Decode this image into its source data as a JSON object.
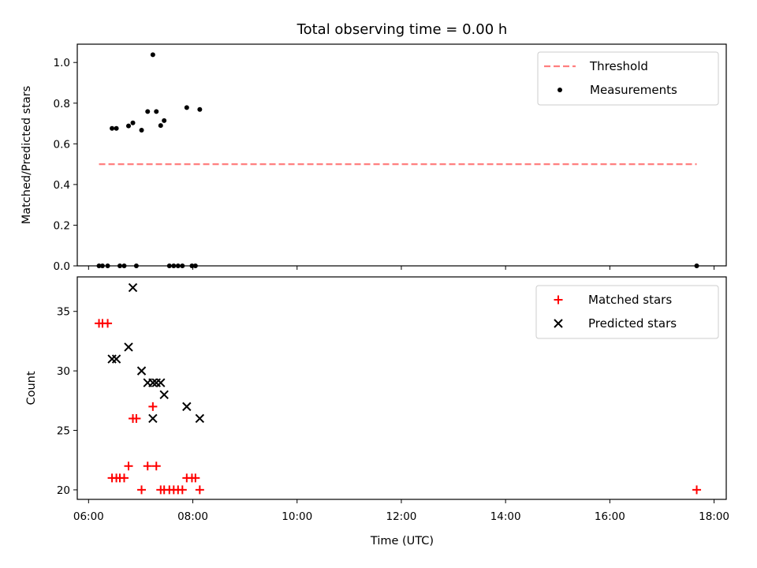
{
  "title": "Total observing time = 0.00 h",
  "xlabel": "Time (UTC)",
  "x_ticks": [
    "06:00",
    "08:00",
    "10:00",
    "12:00",
    "14:00",
    "16:00",
    "18:00"
  ],
  "chart_data": [
    {
      "type": "scatter",
      "ylabel": "Matched/Predicted stars",
      "xlim": [
        "05:47",
        "18:14"
      ],
      "ylim": [
        0,
        1.09
      ],
      "y_ticks": [
        "0.0",
        "0.2",
        "0.4",
        "0.6",
        "0.8",
        "1.0"
      ],
      "legend_position": "upper-right",
      "series": [
        {
          "name": "Threshold",
          "style": "dashed-line",
          "color": "#ff7f7f",
          "x": [
            "06:12",
            "17:40"
          ],
          "y": [
            0.5,
            0.5
          ]
        },
        {
          "name": "Measurements",
          "style": "dot",
          "color": "#000000",
          "points": [
            [
              "06:12",
              0.0
            ],
            [
              "06:16",
              0.0
            ],
            [
              "06:22",
              0.0
            ],
            [
              "06:27",
              0.676
            ],
            [
              "06:32",
              0.676
            ],
            [
              "06:36",
              0.0
            ],
            [
              "06:41",
              0.0
            ],
            [
              "06:46",
              0.688
            ],
            [
              "06:51",
              0.703
            ],
            [
              "06:55",
              0.0
            ],
            [
              "07:01",
              0.667
            ],
            [
              "07:08",
              0.759
            ],
            [
              "07:14",
              1.038
            ],
            [
              "07:18",
              0.759
            ],
            [
              "07:23",
              0.69
            ],
            [
              "07:27",
              0.714
            ],
            [
              "07:33",
              0.0
            ],
            [
              "07:38",
              0.0
            ],
            [
              "07:43",
              0.0
            ],
            [
              "07:48",
              0.0
            ],
            [
              "07:53",
              0.778
            ],
            [
              "07:59",
              0.0
            ],
            [
              "08:03",
              0.0
            ],
            [
              "08:08",
              0.769
            ],
            [
              "17:40",
              0.0
            ]
          ]
        }
      ]
    },
    {
      "type": "scatter",
      "ylabel": "Count",
      "xlim": [
        "05:47",
        "18:14"
      ],
      "ylim": [
        19.2,
        37.9
      ],
      "y_ticks": [
        "20",
        "25",
        "30",
        "35"
      ],
      "legend_position": "upper-right",
      "series": [
        {
          "name": "Matched stars",
          "style": "plus",
          "color": "#ff0000",
          "points": [
            [
              "06:12",
              34
            ],
            [
              "06:16",
              34
            ],
            [
              "06:22",
              34
            ],
            [
              "06:27",
              21
            ],
            [
              "06:32",
              21
            ],
            [
              "06:36",
              21
            ],
            [
              "06:41",
              21
            ],
            [
              "06:46",
              22
            ],
            [
              "06:51",
              26
            ],
            [
              "06:55",
              26
            ],
            [
              "07:01",
              20
            ],
            [
              "07:08",
              22
            ],
            [
              "07:14",
              27
            ],
            [
              "07:18",
              22
            ],
            [
              "07:23",
              20
            ],
            [
              "07:27",
              20
            ],
            [
              "07:33",
              20
            ],
            [
              "07:38",
              20
            ],
            [
              "07:43",
              20
            ],
            [
              "07:48",
              20
            ],
            [
              "07:53",
              21
            ],
            [
              "07:59",
              21
            ],
            [
              "08:03",
              21
            ],
            [
              "08:08",
              20
            ],
            [
              "17:40",
              20
            ]
          ]
        },
        {
          "name": "Predicted stars",
          "style": "x",
          "color": "#000000",
          "points": [
            [
              "06:27",
              31
            ],
            [
              "06:32",
              31
            ],
            [
              "06:46",
              32
            ],
            [
              "06:51",
              37
            ],
            [
              "07:01",
              30
            ],
            [
              "07:08",
              29
            ],
            [
              "07:14",
              26
            ],
            [
              "07:14",
              29
            ],
            [
              "07:18",
              29
            ],
            [
              "07:23",
              29
            ],
            [
              "07:27",
              28
            ],
            [
              "07:53",
              27
            ],
            [
              "08:08",
              26
            ]
          ]
        }
      ]
    }
  ]
}
